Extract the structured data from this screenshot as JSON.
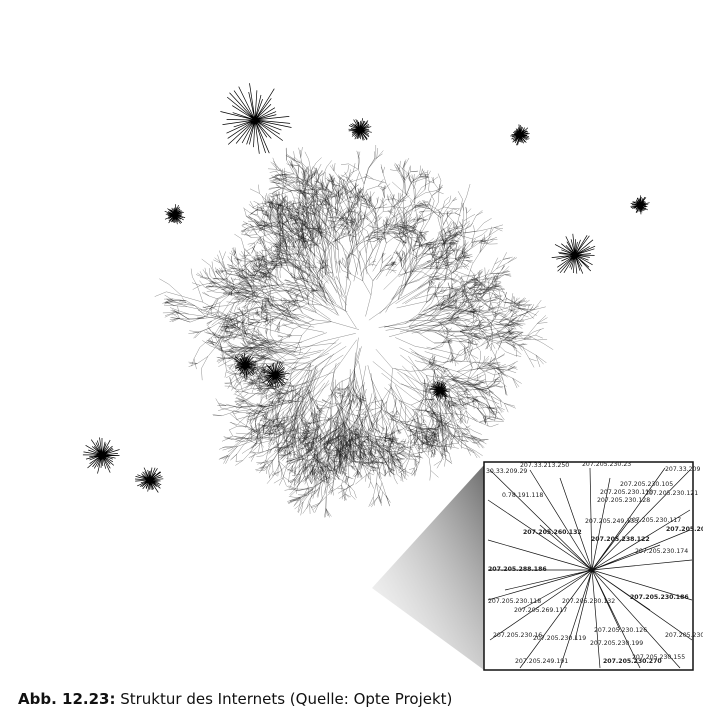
{
  "caption": {
    "label": "Abb. 12.23:",
    "text": "Struktur des Internets (Quelle: Opte Projekt)"
  },
  "inset_labels": [
    "30.33.209.29",
    "207.33.213.250",
    "207.205.230.23",
    "207.33.209",
    "207.205.230.105",
    "207.205.230.110",
    "0.78.191.118",
    "207.205.230.128",
    "207.205.230.121",
    "207.205.249.133",
    "207.205.230.117",
    "207.205.260.132",
    "207.205.238.122",
    "207.205.209",
    "207.205.230.174",
    "207.205.288.186",
    "207.205.230.186",
    "207.205.230.118",
    "207.205.269.117",
    "207.205.230.126",
    "207.205.230.16",
    "207.205.230.119",
    "207.205.230.199",
    "207.205.230.155",
    "207.205.249.191",
    "207.205.230.270",
    "207.205.230.132",
    "207.205.230.15"
  ],
  "colors": {
    "ink": "#111111",
    "paper": "#ffffff",
    "wedge": "#9a9a9a"
  }
}
